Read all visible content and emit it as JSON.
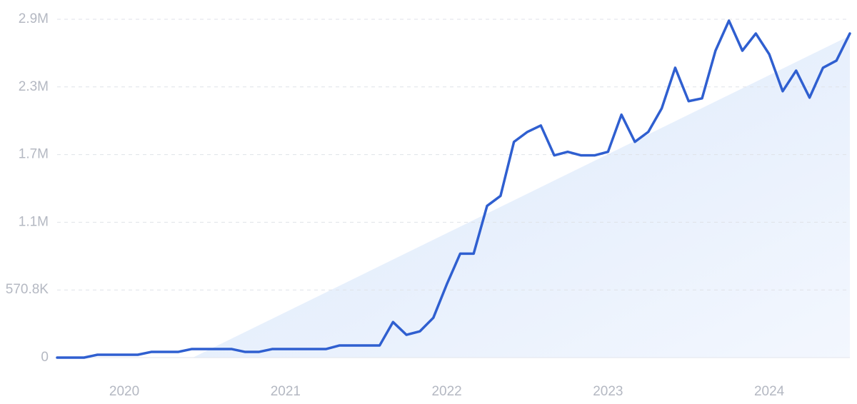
{
  "chart_data": {
    "type": "line",
    "categories": [
      null,
      null,
      null,
      null,
      null,
      "2020",
      null,
      null,
      null,
      null,
      null,
      null,
      null,
      null,
      null,
      null,
      null,
      "2021",
      null,
      null,
      null,
      null,
      null,
      null,
      null,
      null,
      null,
      null,
      null,
      "2022",
      null,
      null,
      null,
      null,
      null,
      null,
      null,
      null,
      null,
      null,
      null,
      "2023",
      null,
      null,
      null,
      null,
      null,
      null,
      null,
      null,
      null,
      null,
      null,
      "2024",
      null,
      null,
      null,
      null,
      null,
      null
    ],
    "values": [
      0,
      0,
      0,
      24000,
      24000,
      24000,
      24000,
      48000,
      48000,
      48000,
      72000,
      72000,
      72000,
      72000,
      48000,
      48000,
      72000,
      72000,
      72000,
      72000,
      72000,
      102000,
      102000,
      102000,
      102000,
      300000,
      192000,
      222000,
      336000,
      618000,
      877000,
      877000,
      1280000,
      1364000,
      1820000,
      1904000,
      1958000,
      1706000,
      1736000,
      1706000,
      1706000,
      1736000,
      2049000,
      1820000,
      1904000,
      2103000,
      2445000,
      2163000,
      2187000,
      2589000,
      2842000,
      2589000,
      2734000,
      2559000,
      2247000,
      2421000,
      2193000,
      2445000,
      2505000,
      2734000
    ],
    "color": "#2f5fd0",
    "ylim": [
      0,
      2854000
    ],
    "yticks": [
      0,
      {
        "value": 570800,
        "label": "570.8K"
      },
      {
        "value": 1141600,
        "label": "1.1M"
      },
      {
        "value": 1712400,
        "label": "1.7M"
      },
      {
        "value": 2283200,
        "label": "2.3M"
      },
      {
        "value": 2854000,
        "label": "2.9M"
      }
    ],
    "grid": true
  }
}
